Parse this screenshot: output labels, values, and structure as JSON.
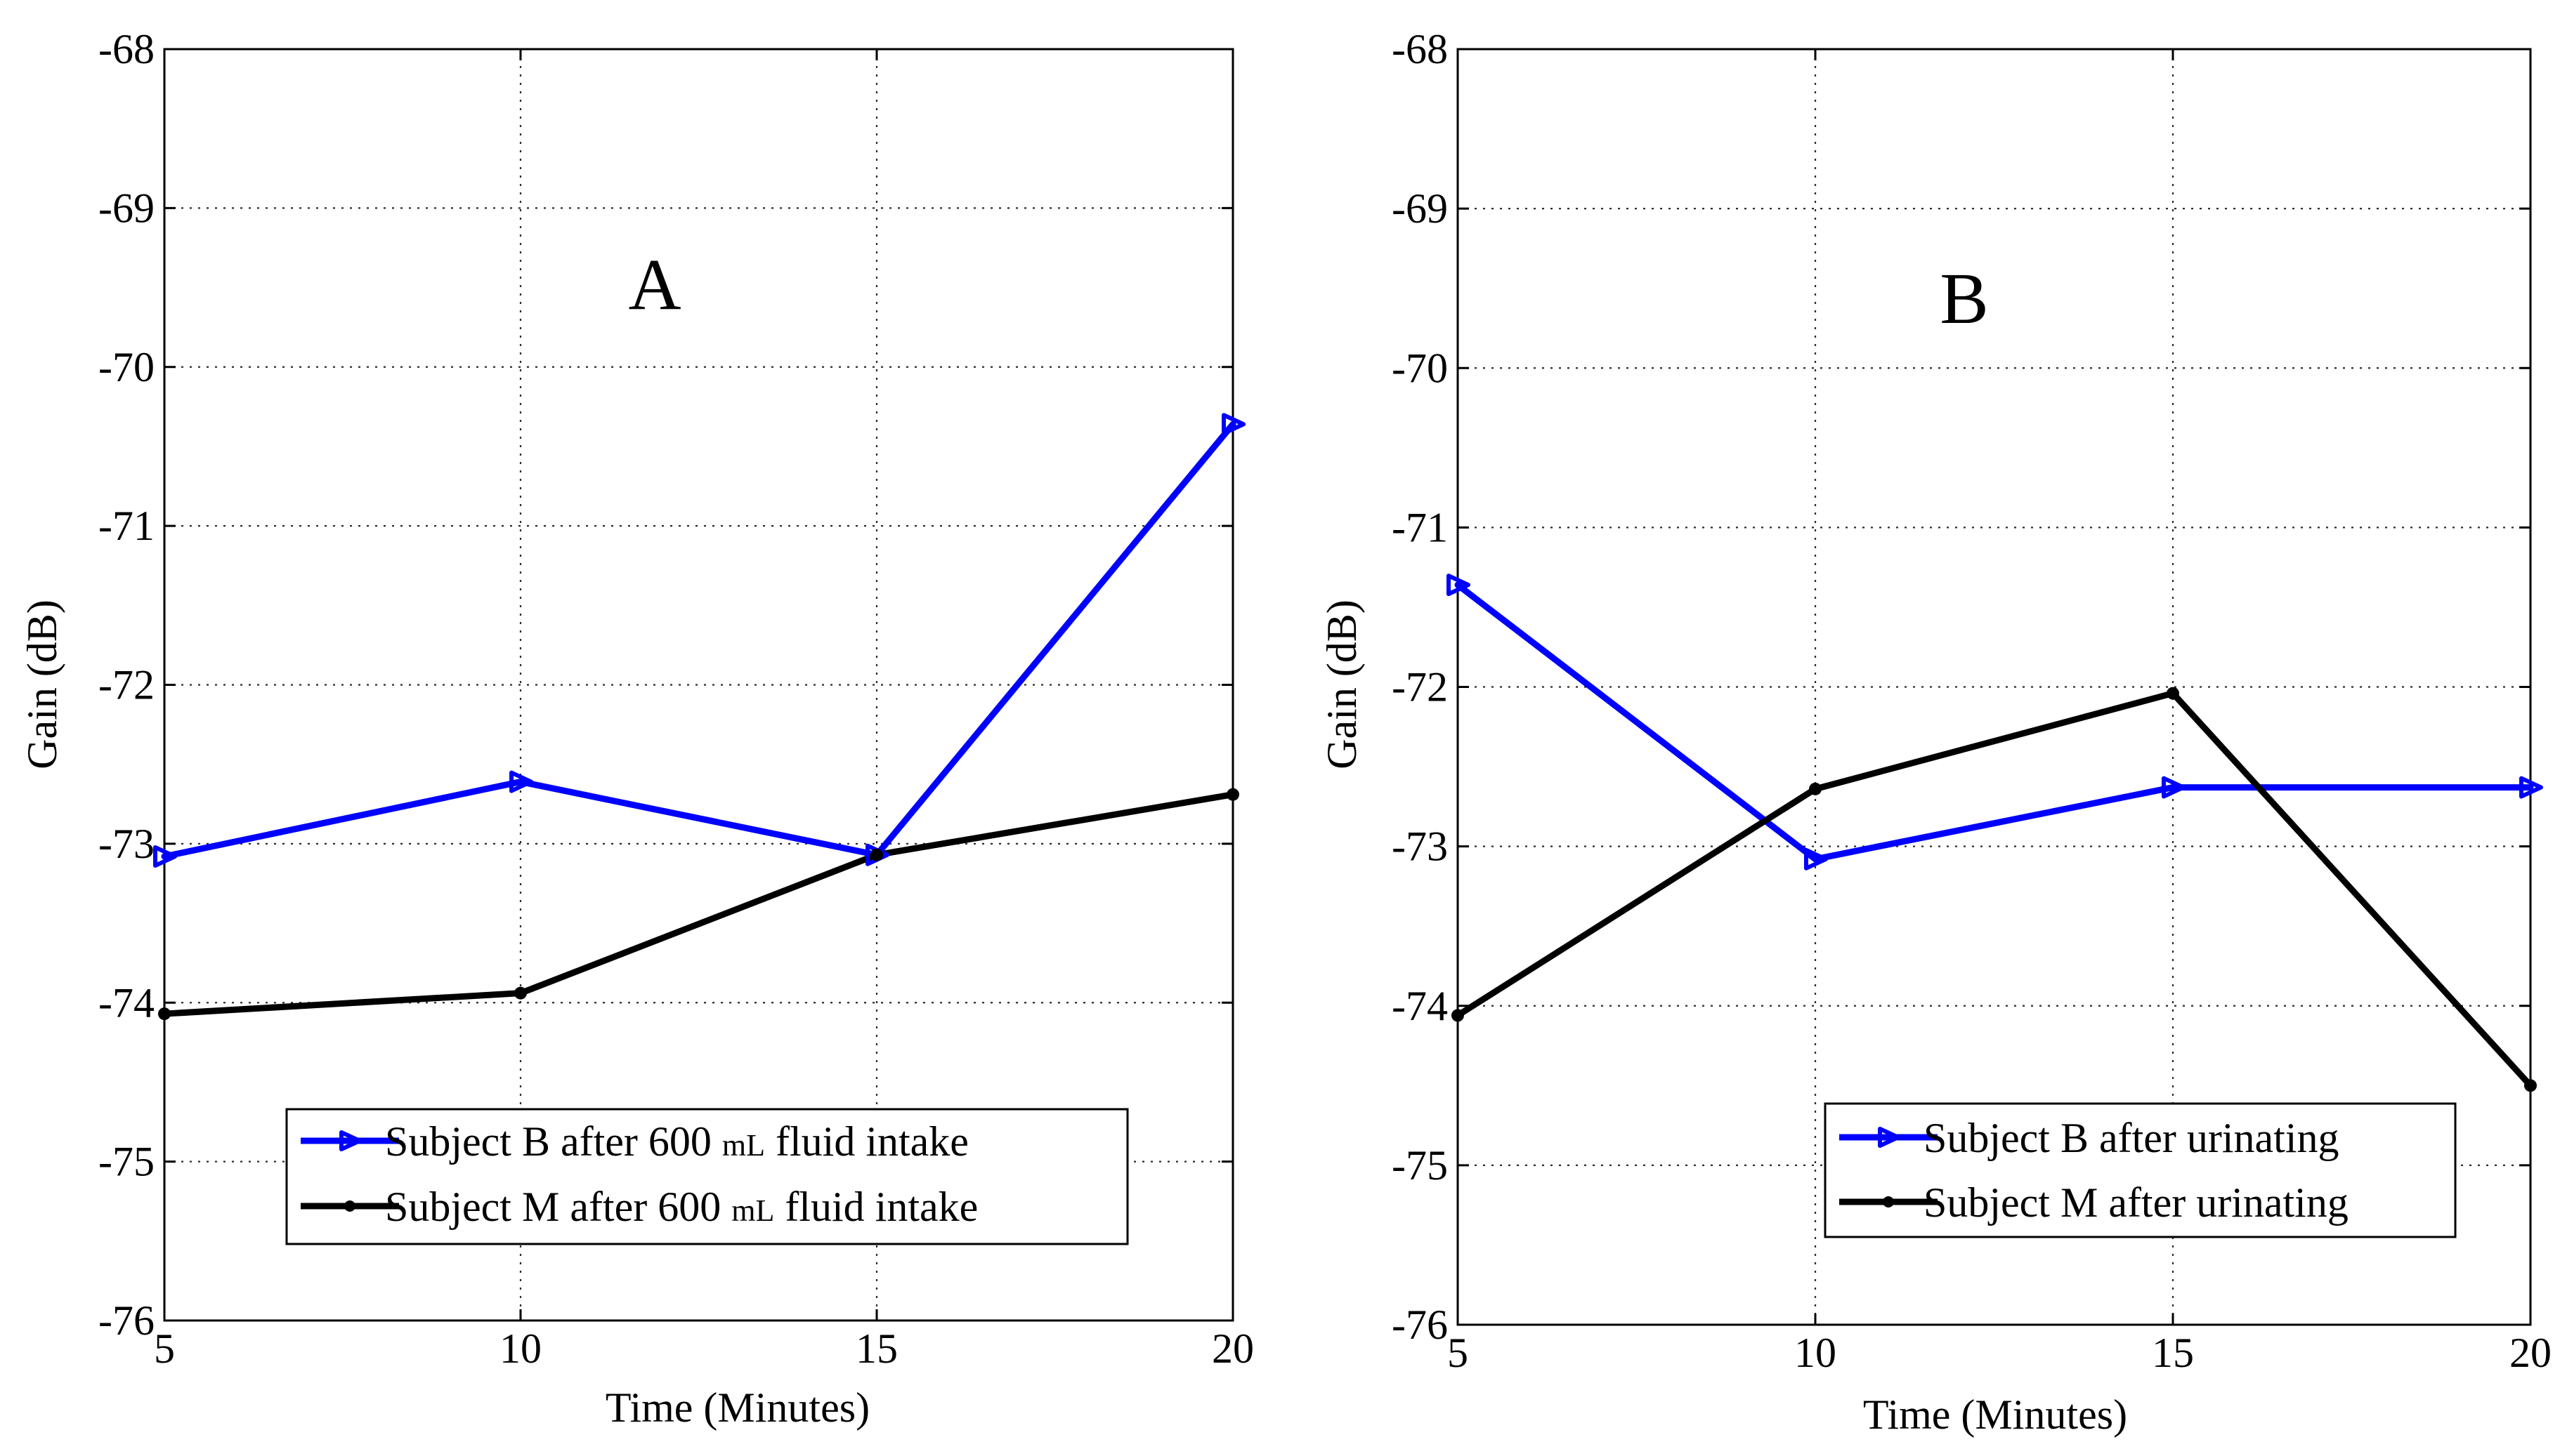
{
  "chart_data": [
    {
      "type": "line",
      "panel_label": "A",
      "xlabel": "Time (Minutes)",
      "ylabel": "Gain (dB)",
      "x": [
        5,
        10,
        15,
        20
      ],
      "xlim": [
        5,
        20
      ],
      "ylim": [
        -76,
        -68
      ],
      "xticks": [
        "5",
        "10",
        "15",
        "20"
      ],
      "yticks": [
        "-68",
        "-69",
        "-70",
        "-71",
        "-72",
        "-73",
        "-74",
        "-75",
        "-76"
      ],
      "grid": true,
      "legend_position": "bottom-center",
      "series": [
        {
          "name": "Subject B after 600 mL fluid intake",
          "name_parts": [
            "Subject B after 600 ",
            "mL",
            " fluid intake"
          ],
          "color": "#0000ff",
          "marker": "triangle-right",
          "values": [
            -73.08,
            -72.61,
            -73.07,
            -70.36
          ]
        },
        {
          "name": "Subject M after 600 mL fluid intake",
          "name_parts": [
            "Subject M after 600 ",
            "mL",
            " fluid intake"
          ],
          "color": "#000000",
          "marker": "dot",
          "values": [
            -74.07,
            -73.94,
            -73.07,
            -72.69
          ]
        }
      ]
    },
    {
      "type": "line",
      "panel_label": "B",
      "xlabel": "Time (Minutes)",
      "ylabel": "Gain (dB)",
      "x": [
        5,
        10,
        15,
        20
      ],
      "xlim": [
        5,
        20
      ],
      "ylim": [
        -76,
        -68
      ],
      "xticks": [
        "5",
        "10",
        "15",
        "20"
      ],
      "yticks": [
        "-68",
        "-69",
        "-70",
        "-71",
        "-72",
        "-73",
        "-74",
        "-75",
        "-76"
      ],
      "grid": true,
      "legend_position": "bottom-right",
      "series": [
        {
          "name": "Subject B after urinating",
          "name_parts": [
            "Subject B after urinating"
          ],
          "color": "#0000ff",
          "marker": "triangle-right",
          "values": [
            -71.36,
            -73.08,
            -72.63,
            -72.63
          ]
        },
        {
          "name": "Subject M after urinating",
          "name_parts": [
            "Subject M after urinating"
          ],
          "color": "#000000",
          "marker": "dot",
          "values": [
            -74.06,
            -72.64,
            -72.04,
            -74.5
          ]
        }
      ]
    }
  ]
}
